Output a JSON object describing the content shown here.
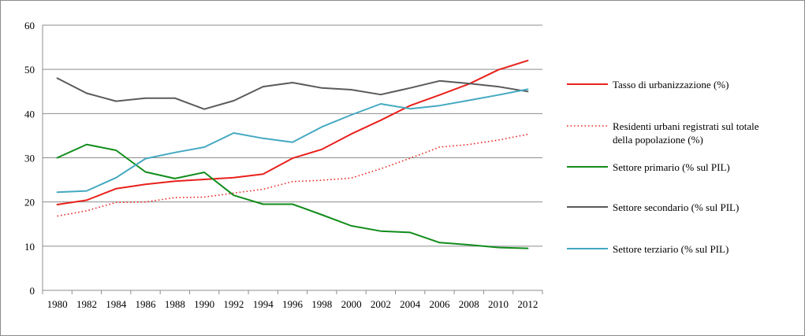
{
  "chart_data": {
    "type": "line",
    "title": "",
    "xlabel": "",
    "ylabel": "",
    "ylim": [
      0,
      60
    ],
    "yticks": [
      0,
      10,
      20,
      30,
      40,
      50,
      60
    ],
    "grid": true,
    "legend_position": "right",
    "categories": [
      "1980",
      "1982",
      "1984",
      "1986",
      "1988",
      "1990",
      "1992",
      "1994",
      "1996",
      "1998",
      "2000",
      "2002",
      "2004",
      "2006",
      "2008",
      "2010",
      "2012"
    ],
    "series": [
      {
        "name": "Tasso di urbanizzazione  (%)",
        "color": "#e8211c",
        "style": "solid",
        "values": [
          19.4,
          20.4,
          23.0,
          24.0,
          24.7,
          25.1,
          25.5,
          26.3,
          29.9,
          31.9,
          35.4,
          38.5,
          41.8,
          44.2,
          46.7,
          49.9,
          52.0
        ]
      },
      {
        "name": "Residenti urbani registrati sul totale della popolazione (%)",
        "color": "#e8211c",
        "style": "dotted",
        "values": [
          16.8,
          18.0,
          19.9,
          20.0,
          21.0,
          21.1,
          22.0,
          22.9,
          24.6,
          24.9,
          25.4,
          27.5,
          29.9,
          32.4,
          33.0,
          34.0,
          35.3
        ]
      },
      {
        "name": "Settore primario (% sul PIL)",
        "color": "#118c1b",
        "style": "solid",
        "values": [
          30.0,
          33.0,
          31.7,
          26.8,
          25.3,
          26.7,
          21.5,
          19.5,
          19.5,
          17.1,
          14.6,
          13.4,
          13.1,
          10.8,
          10.3,
          9.7,
          9.5
        ]
      },
      {
        "name": "Settore secondario (% sul PIL)",
        "color": "#5a5a5a",
        "style": "solid",
        "values": [
          48.0,
          44.6,
          42.8,
          43.5,
          43.5,
          41.0,
          42.9,
          46.1,
          47.0,
          45.8,
          45.4,
          44.3,
          45.8,
          47.4,
          46.8,
          46.1,
          45.0
        ]
      },
      {
        "name": "Settore terziario (% sul PIL)",
        "color": "#44a9c1",
        "style": "solid",
        "values": [
          22.2,
          22.5,
          25.5,
          29.8,
          31.2,
          32.4,
          35.6,
          34.4,
          33.5,
          37.0,
          39.7,
          42.2,
          41.1,
          41.8,
          43.0,
          44.2,
          45.5
        ]
      }
    ]
  }
}
